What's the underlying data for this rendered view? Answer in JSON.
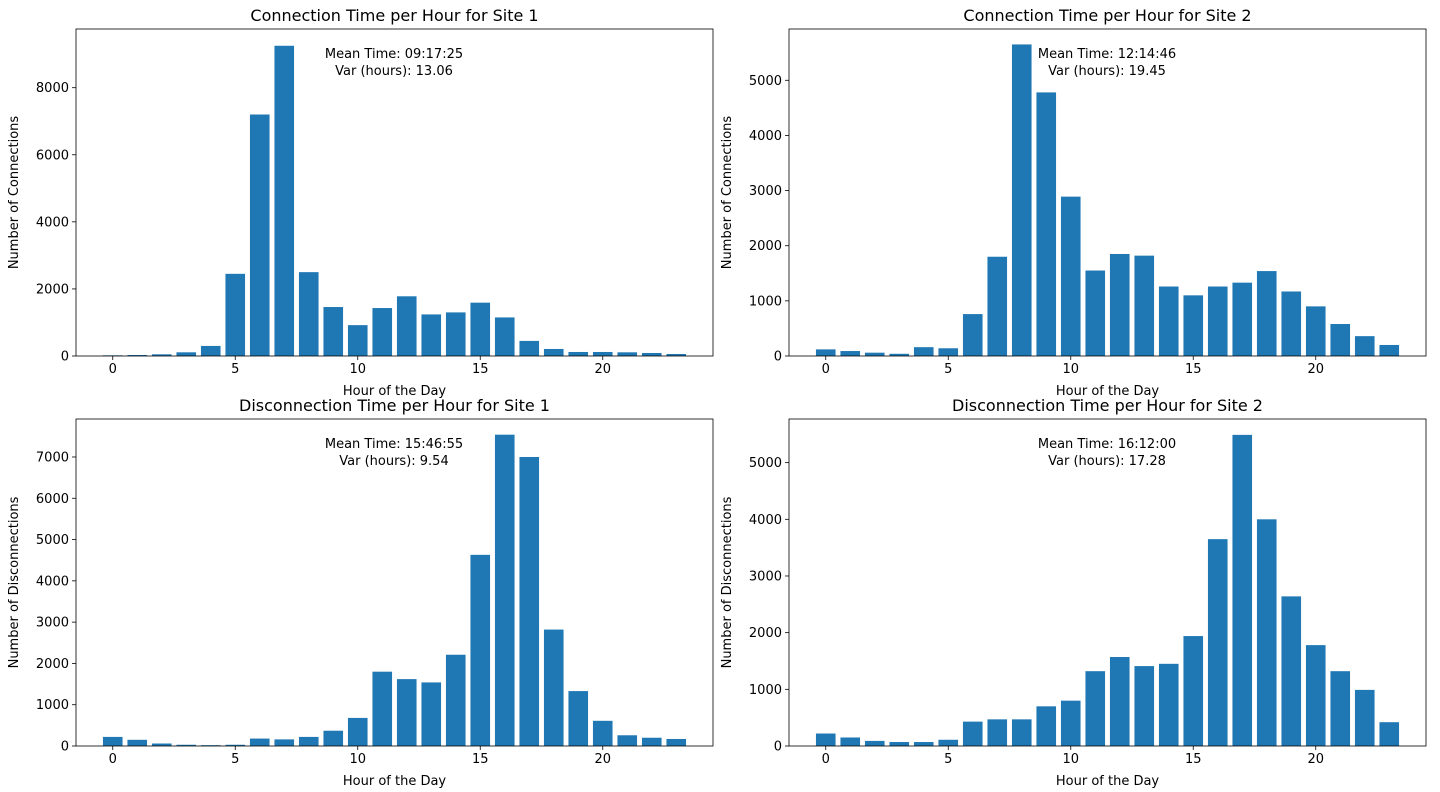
{
  "bar_color": "#1f77b4",
  "chart_data": [
    {
      "type": "bar",
      "title": "Connection Time per Hour for Site 1",
      "xlabel": "Hour of the Day",
      "ylabel": "Number of Connections",
      "annotation_lines": [
        "Mean Time: 09:17:25",
        "Var (hours): 13.06"
      ],
      "x": [
        0,
        1,
        2,
        3,
        4,
        5,
        6,
        7,
        8,
        9,
        10,
        11,
        12,
        13,
        14,
        15,
        16,
        17,
        18,
        19,
        20,
        21,
        22,
        23
      ],
      "values": [
        20,
        30,
        50,
        110,
        300,
        2450,
        7200,
        9250,
        2500,
        1460,
        920,
        1430,
        1780,
        1240,
        1300,
        1590,
        1150,
        450,
        210,
        120,
        120,
        110,
        90,
        60
      ],
      "xlim": [
        -1.5,
        24.5
      ],
      "ylim": [
        0,
        9750
      ],
      "xticks": [
        0,
        5,
        10,
        15,
        20
      ],
      "yticks": [
        0,
        2000,
        4000,
        6000,
        8000
      ]
    },
    {
      "type": "bar",
      "title": "Connection Time per Hour for Site 2",
      "xlabel": "Hour of the Day",
      "ylabel": "Number of Connections",
      "annotation_lines": [
        "Mean Time: 12:14:46",
        "Var (hours): 19.45"
      ],
      "x": [
        0,
        1,
        2,
        3,
        4,
        5,
        6,
        7,
        8,
        9,
        10,
        11,
        12,
        13,
        14,
        15,
        16,
        17,
        18,
        19,
        20,
        21,
        22,
        23
      ],
      "values": [
        120,
        90,
        60,
        40,
        160,
        140,
        760,
        1800,
        5650,
        4780,
        2890,
        1550,
        1850,
        1820,
        1260,
        1100,
        1260,
        1330,
        1540,
        1170,
        900,
        580,
        360,
        200
      ],
      "xlim": [
        -1.5,
        24.5
      ],
      "ylim": [
        0,
        5930
      ],
      "xticks": [
        0,
        5,
        10,
        15,
        20
      ],
      "yticks": [
        0,
        1000,
        2000,
        3000,
        4000,
        5000
      ]
    },
    {
      "type": "bar",
      "title": "Disconnection Time per Hour for Site 1",
      "xlabel": "Hour of the Day",
      "ylabel": "Number of Disconnections",
      "annotation_lines": [
        "Mean Time: 15:46:55",
        "Var (hours): 9.54"
      ],
      "x": [
        0,
        1,
        2,
        3,
        4,
        5,
        6,
        7,
        8,
        9,
        10,
        11,
        12,
        13,
        14,
        15,
        16,
        17,
        18,
        19,
        20,
        21,
        22,
        23
      ],
      "values": [
        220,
        150,
        60,
        30,
        20,
        30,
        180,
        160,
        220,
        370,
        680,
        1800,
        1620,
        1540,
        2210,
        4630,
        7540,
        7000,
        2820,
        1330,
        610,
        260,
        200,
        170
      ],
      "xlim": [
        -1.5,
        24.5
      ],
      "ylim": [
        0,
        7920
      ],
      "xticks": [
        0,
        5,
        10,
        15,
        20
      ],
      "yticks": [
        0,
        1000,
        2000,
        3000,
        4000,
        5000,
        6000,
        7000
      ]
    },
    {
      "type": "bar",
      "title": "Disconnection Time per Hour for Site 2",
      "xlabel": "Hour of the Day",
      "ylabel": "Number of Disconnections",
      "annotation_lines": [
        "Mean Time: 16:12:00",
        "Var (hours): 17.28"
      ],
      "x": [
        0,
        1,
        2,
        3,
        4,
        5,
        6,
        7,
        8,
        9,
        10,
        11,
        12,
        13,
        14,
        15,
        16,
        17,
        18,
        19,
        20,
        21,
        22,
        23
      ],
      "values": [
        220,
        150,
        90,
        70,
        70,
        110,
        430,
        470,
        470,
        700,
        800,
        1320,
        1570,
        1410,
        1450,
        1940,
        3650,
        5490,
        4000,
        2640,
        1780,
        1320,
        990,
        420
      ],
      "xlim": [
        -1.5,
        24.5
      ],
      "ylim": [
        0,
        5770
      ],
      "xticks": [
        0,
        5,
        10,
        15,
        20
      ],
      "yticks": [
        0,
        1000,
        2000,
        3000,
        4000,
        5000
      ]
    }
  ]
}
